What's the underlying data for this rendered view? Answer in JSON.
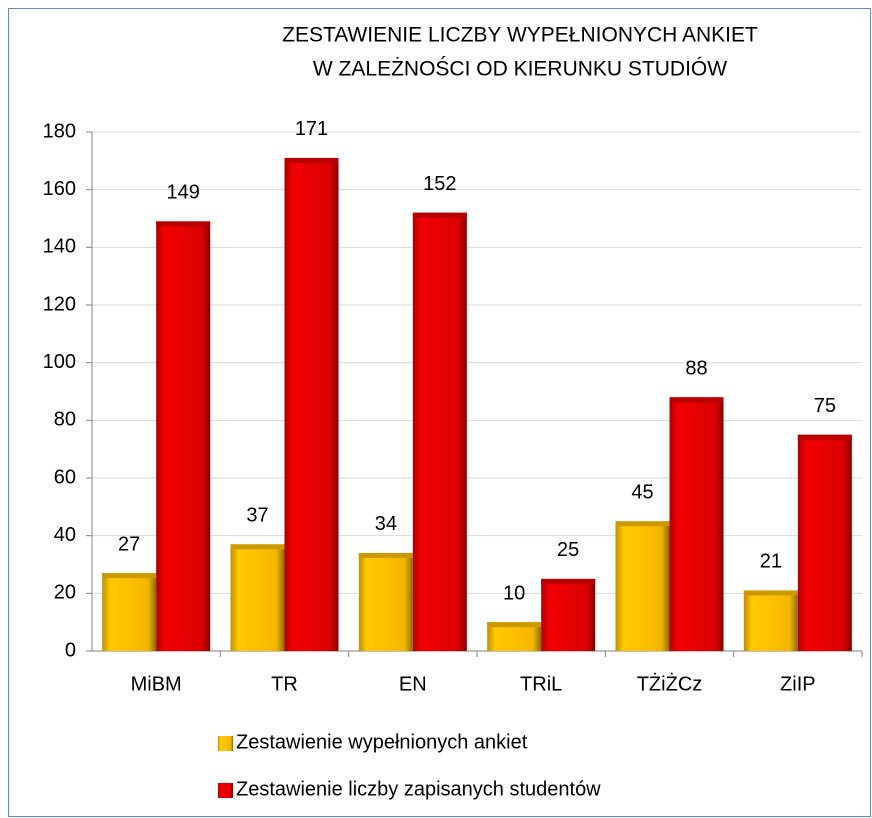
{
  "chart_data": {
    "type": "bar",
    "title": [
      "ZESTAWIENIE LICZBY WYPEŁNIONYCH ANKIET",
      "W ZALEŻNOŚCI OD KIERUNKU STUDIÓW"
    ],
    "categories": [
      "MiBM",
      "TR",
      "EN",
      "TRiL",
      "TŻiŻCz",
      "ZiIP"
    ],
    "series": [
      {
        "name": "Zestawienie wypełnionych ankiet",
        "color": "#ffc000",
        "values": [
          27,
          37,
          34,
          10,
          45,
          21
        ]
      },
      {
        "name": "Zestawienie liczby zapisanych studentów",
        "color": "#e60000",
        "values": [
          149,
          171,
          152,
          25,
          88,
          75
        ]
      }
    ],
    "ylim": [
      0,
      180
    ],
    "yticks": [
      0,
      20,
      40,
      60,
      80,
      100,
      120,
      140,
      160,
      180
    ],
    "grid": true,
    "legend": "bottom"
  }
}
